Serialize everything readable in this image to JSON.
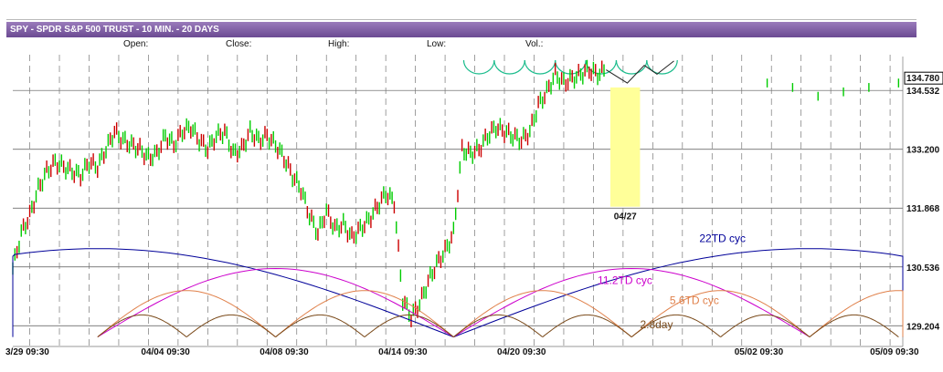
{
  "header": {
    "title": "SPY - SPDR S&P 500 TRUST - 10 MIN. - 20 DAYS",
    "open_label": "Open:",
    "close_label": "Close:",
    "high_label": "High:",
    "low_label": "Low:",
    "vol_label": "Vol.:"
  },
  "colors": {
    "title_bar": "#6b4a92",
    "up_bar": "#00cc00",
    "down_bar": "#cc0000",
    "cycle_22td": "#000099",
    "cycle_11_2td": "#cc00cc",
    "cycle_5_6td": "#e0804a",
    "cycle_2_8day": "#7a4a1a",
    "projection_arcs": "#1abc8c",
    "highlight": "#ffff99"
  },
  "chart_data": {
    "type": "line",
    "title": "SPY - SPDR S&P 500 TRUST - 10 MIN. - 20 DAYS",
    "price_label": "134.780",
    "y_ticks": [
      "134.532",
      "133.200",
      "131.868",
      "130.536",
      "129.204"
    ],
    "y_tick_values": [
      134.532,
      133.2,
      131.868,
      130.536,
      129.204
    ],
    "ylim": [
      128.9,
      135.3
    ],
    "x_ticks": [
      "3/29 09:30",
      "04/04 09:30",
      "04/08 09:30",
      "04/14 09:30",
      "04/20 09:30",
      "05/02 09:30",
      "05/09 09:30"
    ],
    "x_tick_bars": [
      0,
      32,
      60,
      88,
      116,
      172,
      204
    ],
    "x_range_bars": [
      0,
      210
    ],
    "grid": true,
    "highlight": {
      "label": "04/27",
      "from_bar": 141,
      "to_bar": 148
    },
    "price_series": {
      "x": [
        0,
        2,
        4,
        6,
        8,
        10,
        12,
        14,
        16,
        18,
        20,
        22,
        24,
        26,
        28,
        30,
        32,
        34,
        36,
        38,
        40,
        42,
        44,
        46,
        48,
        50,
        52,
        54,
        56,
        58,
        60,
        62,
        64,
        66,
        68,
        70,
        72,
        74,
        76,
        78,
        80,
        82,
        84,
        86,
        88,
        90,
        92,
        94,
        96,
        98,
        100,
        102,
        104,
        106,
        108,
        110,
        112,
        114,
        116,
        118,
        120,
        122,
        124,
        126,
        128,
        130,
        132,
        134,
        136,
        138,
        140
      ],
      "y": [
        130.5,
        131.3,
        131.7,
        132.3,
        132.7,
        132.9,
        132.8,
        132.7,
        132.6,
        132.9,
        132.8,
        133.2,
        133.6,
        133.4,
        133.3,
        133.2,
        133.0,
        133.1,
        133.5,
        133.3,
        133.6,
        133.7,
        133.4,
        133.2,
        133.5,
        133.6,
        133.1,
        133.2,
        133.6,
        133.4,
        133.5,
        133.3,
        133.0,
        132.6,
        132.3,
        131.7,
        131.3,
        131.8,
        131.4,
        131.5,
        131.2,
        131.4,
        131.6,
        131.9,
        132.2,
        132.0,
        129.8,
        129.4,
        129.7,
        130.2,
        130.6,
        130.9,
        131.3,
        133.2,
        133.1,
        133.2,
        133.5,
        133.7,
        133.6,
        133.5,
        133.4,
        133.6,
        134.2,
        134.5,
        134.9,
        134.7,
        134.8,
        134.9,
        135.0,
        134.9,
        135.0
      ]
    },
    "series": [
      {
        "name": "22TD cyc",
        "trough_bars": [
          -64,
          104,
          272
        ],
        "amplitude": 0.35
      },
      {
        "name": "11.2TD cyc",
        "trough_bars": [
          20,
          104,
          188
        ],
        "amplitude": 1.4
      },
      {
        "name": "5.6TD cyc",
        "trough_bars": [
          20,
          62,
          104,
          146,
          188,
          230
        ],
        "amplitude": 0.9
      },
      {
        "name": "2.8day",
        "trough_bars": [
          20,
          41,
          62,
          83,
          104,
          125,
          146,
          167,
          188,
          209
        ],
        "amplitude": 0.3
      }
    ]
  }
}
